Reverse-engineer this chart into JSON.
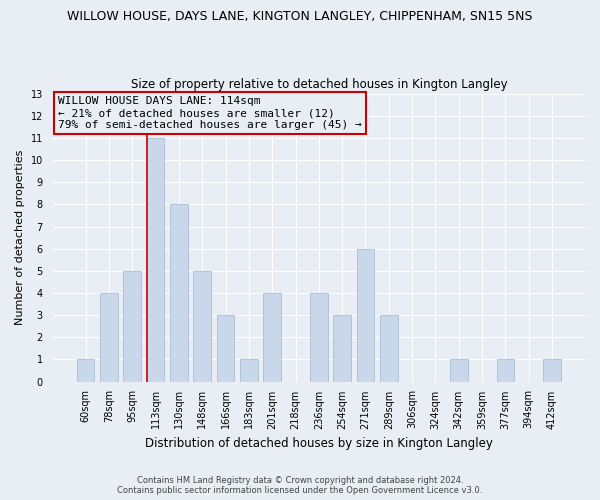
{
  "title": "WILLOW HOUSE, DAYS LANE, KINGTON LANGLEY, CHIPPENHAM, SN15 5NS",
  "subtitle": "Size of property relative to detached houses in Kington Langley",
  "xlabel": "Distribution of detached houses by size in Kington Langley",
  "ylabel": "Number of detached properties",
  "bin_labels": [
    "60sqm",
    "78sqm",
    "95sqm",
    "113sqm",
    "130sqm",
    "148sqm",
    "166sqm",
    "183sqm",
    "201sqm",
    "218sqm",
    "236sqm",
    "254sqm",
    "271sqm",
    "289sqm",
    "306sqm",
    "324sqm",
    "342sqm",
    "359sqm",
    "377sqm",
    "394sqm",
    "412sqm"
  ],
  "bar_values": [
    1,
    4,
    5,
    11,
    8,
    5,
    3,
    1,
    4,
    0,
    4,
    3,
    6,
    3,
    0,
    0,
    1,
    0,
    1,
    0,
    1
  ],
  "highlight_index": 3,
  "bar_color": "#c8d8ea",
  "highlight_line_color": "#cc0000",
  "ylim": [
    0,
    13
  ],
  "yticks": [
    0,
    1,
    2,
    3,
    4,
    5,
    6,
    7,
    8,
    9,
    10,
    11,
    12,
    13
  ],
  "annotation_title": "WILLOW HOUSE DAYS LANE: 114sqm",
  "annotation_line1": "← 21% of detached houses are smaller (12)",
  "annotation_line2": "79% of semi-detached houses are larger (45) →",
  "footer_line1": "Contains HM Land Registry data © Crown copyright and database right 2024.",
  "footer_line2": "Contains public sector information licensed under the Open Government Licence v3.0.",
  "background_color": "#e8eef4",
  "plot_bg_color": "#e8eef4",
  "grid_color": "#ffffff",
  "ann_box_color": "#cc0000",
  "title_fontsize": 9,
  "subtitle_fontsize": 8.5,
  "ylabel_fontsize": 8,
  "xlabel_fontsize": 8.5,
  "tick_fontsize": 7,
  "ann_fontsize": 8
}
